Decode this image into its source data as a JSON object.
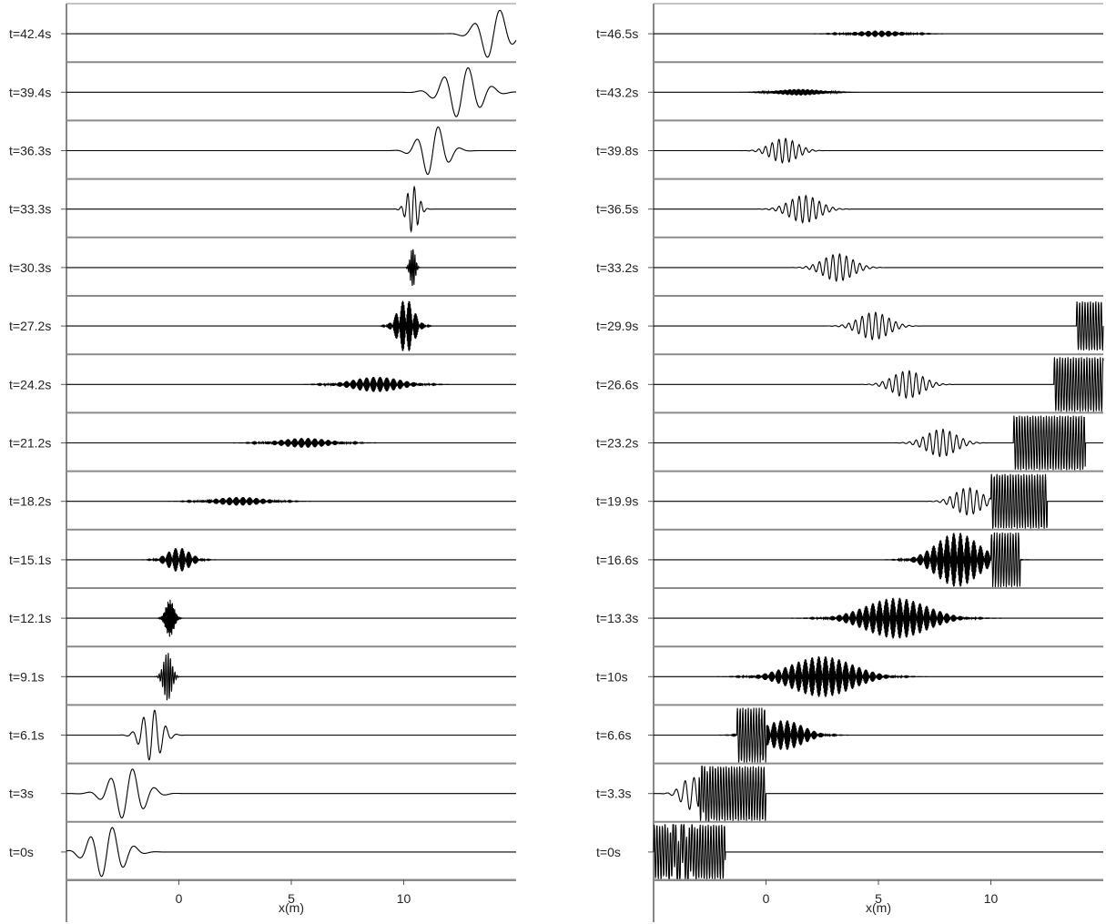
{
  "charts": [
    {
      "type": "line",
      "layout": "stacked-snapshots",
      "title": "",
      "xlabel": "x(m)",
      "ylabel": "",
      "xlim": [
        -5,
        15
      ],
      "xticks": [
        "0",
        "5",
        "10"
      ],
      "grid": false,
      "legend": "none",
      "snapshots": [
        {
          "time": "t=42.4s",
          "center": 14.0,
          "width": 0.9,
          "cycles": 1.2,
          "amp": 0.95,
          "kind": "wave",
          "reflect": null
        },
        {
          "time": "t=39.4s",
          "center": 12.6,
          "width": 1.1,
          "cycles": 1.1,
          "amp": 0.95,
          "kind": "wave",
          "reflect": null
        },
        {
          "time": "t=36.3s",
          "center": 11.3,
          "width": 0.8,
          "cycles": 1.0,
          "amp": 0.95,
          "kind": "wave",
          "reflect": null
        },
        {
          "time": "t=33.3s",
          "center": 10.4,
          "width": 0.35,
          "cycles": 0.3,
          "amp": 0.85,
          "kind": "wave",
          "reflect": null
        },
        {
          "time": "t=30.3s",
          "center": 10.4,
          "width": 0.15,
          "cycles": 0.08,
          "amp": 0.75,
          "kind": "dense",
          "reflect": null
        },
        {
          "time": "t=27.2s",
          "center": 10.1,
          "width": 0.5,
          "cycles": 0.03,
          "amp": 1.0,
          "kind": "dense",
          "reflect": null
        },
        {
          "time": "t=24.2s",
          "center": 8.8,
          "width": 1.5,
          "cycles": 0.03,
          "amp": 0.28,
          "kind": "dense",
          "reflect": null
        },
        {
          "time": "t=21.2s",
          "center": 5.6,
          "width": 1.5,
          "cycles": 0.03,
          "amp": 0.18,
          "kind": "dense",
          "reflect": null
        },
        {
          "time": "t=18.2s",
          "center": 2.7,
          "width": 1.5,
          "cycles": 0.03,
          "amp": 0.16,
          "kind": "dense",
          "reflect": null
        },
        {
          "time": "t=15.1s",
          "center": 0.0,
          "width": 0.7,
          "cycles": 0.03,
          "amp": 0.45,
          "kind": "dense",
          "reflect": null
        },
        {
          "time": "t=12.1s",
          "center": -0.4,
          "width": 0.25,
          "cycles": 0.05,
          "amp": 0.7,
          "kind": "dense",
          "reflect": null
        },
        {
          "time": "t=9.1s",
          "center": -0.5,
          "width": 0.25,
          "cycles": 0.1,
          "amp": 0.9,
          "kind": "wave",
          "reflect": null
        },
        {
          "time": "t=6.1s",
          "center": -1.2,
          "width": 0.6,
          "cycles": 0.5,
          "amp": 0.95,
          "kind": "wave",
          "reflect": null
        },
        {
          "time": "t=3s",
          "center": -2.3,
          "width": 1.0,
          "cycles": 1.0,
          "amp": 0.95,
          "kind": "wave",
          "reflect": null
        },
        {
          "time": "t=0s",
          "center": -3.2,
          "width": 1.0,
          "cycles": 1.0,
          "amp": 0.95,
          "kind": "wave",
          "reflect": null
        }
      ]
    },
    {
      "type": "line",
      "layout": "stacked-snapshots",
      "title": "",
      "xlabel": "x(m)",
      "ylabel": "",
      "xlim": [
        -5,
        15
      ],
      "xticks": [
        "0",
        "5",
        "10"
      ],
      "grid": false,
      "legend": "none",
      "snapshots": [
        {
          "time": "t=46.5s",
          "center": 5.0,
          "width": 1.4,
          "cycles": 0.03,
          "amp": 0.12,
          "kind": "dense",
          "reflect": null
        },
        {
          "time": "t=43.2s",
          "center": 1.5,
          "width": 1.3,
          "cycles": 0.04,
          "amp": 0.12,
          "kind": "dense",
          "reflect": null
        },
        {
          "time": "t=39.8s",
          "center": 0.8,
          "width": 0.8,
          "cycles": 0.3,
          "amp": 0.45,
          "kind": "wave",
          "reflect": null
        },
        {
          "time": "t=36.5s",
          "center": 1.7,
          "width": 0.9,
          "cycles": 0.3,
          "amp": 0.5,
          "kind": "wave",
          "reflect": null
        },
        {
          "time": "t=33.2s",
          "center": 3.2,
          "width": 0.9,
          "cycles": 0.3,
          "amp": 0.5,
          "kind": "wave",
          "reflect": null
        },
        {
          "time": "t=29.9s",
          "center": 4.8,
          "width": 0.9,
          "cycles": 0.3,
          "amp": 0.5,
          "kind": "wave",
          "reflect": {
            "start": 13.8,
            "end": 15.0,
            "amp": 0.9
          }
        },
        {
          "time": "t=26.6s",
          "center": 6.3,
          "width": 0.9,
          "cycles": 0.3,
          "amp": 0.5,
          "kind": "wave",
          "reflect": {
            "start": 12.8,
            "end": 15.0,
            "amp": 1.0
          }
        },
        {
          "time": "t=23.2s",
          "center": 7.8,
          "width": 0.9,
          "cycles": 0.3,
          "amp": 0.5,
          "kind": "wave",
          "reflect": {
            "start": 11.0,
            "end": 14.2,
            "amp": 1.0
          }
        },
        {
          "time": "t=19.9s",
          "center": 9.0,
          "width": 0.8,
          "cycles": 0.3,
          "amp": 0.5,
          "kind": "wave",
          "reflect": {
            "start": 10.0,
            "end": 12.5,
            "amp": 1.0
          }
        },
        {
          "time": "t=16.6s",
          "center": 8.5,
          "width": 1.3,
          "cycles": 0.03,
          "amp": 1.0,
          "kind": "dense",
          "reflect": {
            "start": 10.0,
            "end": 11.3,
            "amp": 1.0
          }
        },
        {
          "time": "t=13.3s",
          "center": 5.8,
          "width": 1.9,
          "cycles": 0.03,
          "amp": 0.75,
          "kind": "dense",
          "reflect": null
        },
        {
          "time": "t=10s",
          "center": 2.5,
          "width": 1.9,
          "cycles": 0.03,
          "amp": 0.75,
          "kind": "dense",
          "reflect": null
        },
        {
          "time": "t=6.6s",
          "center": 0.8,
          "width": 1.2,
          "cycles": 0.03,
          "amp": 0.55,
          "kind": "dense",
          "reflect": {
            "start": -1.3,
            "end": 0.0,
            "amp": 1.0
          }
        },
        {
          "time": "t=3.3s",
          "center": -3.3,
          "width": 0.6,
          "cycles": 0.4,
          "amp": 0.6,
          "kind": "wave",
          "reflect": {
            "start": -3.0,
            "end": 0.0,
            "amp": 1.0
          }
        },
        {
          "time": "t=0s",
          "center": -3.8,
          "width": 0.6,
          "cycles": 0.4,
          "amp": 0.6,
          "kind": "wave",
          "reflect": {
            "start": -5.0,
            "end": -1.8,
            "amp": 1.0
          }
        }
      ]
    }
  ]
}
